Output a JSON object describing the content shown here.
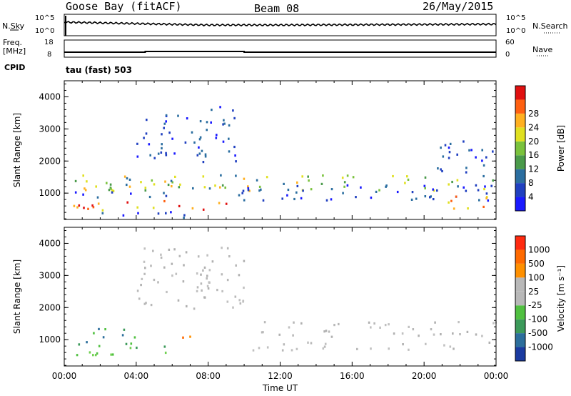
{
  "header": {
    "station": "Goose Bay (fitACF)",
    "beam": "Beam 08",
    "date": "26/May/2015"
  },
  "top_panels": {
    "nsky_label": "N.Sky",
    "nsky_ticks": [
      "10^5",
      "10^0"
    ],
    "nsearch_label": "N.Search",
    "nsearch_ticks": [
      "10^5",
      "10^0"
    ],
    "freq_label": "Freq.",
    "freq_unit": "[MHz]",
    "freq_ticks": [
      "18",
      "8"
    ],
    "nave_label": "Nave",
    "nave_ticks": [
      "60",
      "0"
    ],
    "cpid_label": "CPID",
    "cpid_value": "tau (fast) 503"
  },
  "chart_data": [
    {
      "type": "heatmap",
      "name": "power-panel",
      "ylabel": "Slant Range [km]",
      "ylim": [
        180,
        4500
      ],
      "yticks": [
        1000,
        2000,
        3000,
        4000
      ],
      "xlim": [
        "00:00",
        "24:00"
      ],
      "colorbar": {
        "label": "Power [dB]",
        "ticks": [
          "4",
          "8",
          "12",
          "16",
          "20",
          "24",
          "28"
        ],
        "colors": [
          "#1a1aff",
          "#2040c0",
          "#2b6ea0",
          "#4a9a4a",
          "#7ac23c",
          "#e0e020",
          "#ffb020",
          "#ff6010",
          "#e01010"
        ]
      },
      "regions": [
        {
          "t0": 0.5,
          "t1": 24,
          "r0": 1100,
          "r1": 1600,
          "level": "mid"
        },
        {
          "t0": 0.5,
          "t1": 10,
          "r0": 500,
          "r1": 800,
          "level": "high"
        },
        {
          "t0": 0.5,
          "t1": 6,
          "r0": 900,
          "r1": 1100,
          "level": "low"
        },
        {
          "t0": 4,
          "t1": 9.5,
          "r0": 2000,
          "r1": 3800,
          "level": "low"
        },
        {
          "t0": 9.5,
          "t1": 24,
          "r0": 800,
          "r1": 1300,
          "level": "low"
        },
        {
          "t0": 21,
          "t1": 24,
          "r0": 550,
          "r1": 950,
          "level": "high"
        },
        {
          "t0": 20.5,
          "t1": 24,
          "r0": 1600,
          "r1": 2700,
          "level": "low"
        },
        {
          "t0": 2,
          "t1": 7,
          "r0": 250,
          "r1": 450,
          "level": "low"
        }
      ]
    },
    {
      "type": "heatmap",
      "name": "velocity-panel",
      "ylabel": "Slant Range [km]",
      "xlabel": "Time UT",
      "ylim": [
        180,
        4500
      ],
      "yticks": [
        1000,
        2000,
        3000,
        4000
      ],
      "xticks": [
        "00:00",
        "04:00",
        "08:00",
        "12:00",
        "16:00",
        "20:00",
        "00:00"
      ],
      "colorbar": {
        "label": "Velocity [m s^-1]",
        "ticks": [
          "1000",
          "500",
          "100",
          "25",
          "-25",
          "-100",
          "-500",
          "-1000"
        ],
        "colors": [
          "#1a3aa0",
          "#2c6e9c",
          "#3c9a5a",
          "#50c040",
          "#b8b8b8",
          "#b8b8b8",
          "#ff9000",
          "#ff6a00",
          "#ff2a10"
        ]
      },
      "regions": [
        {
          "t0": 4,
          "t1": 10,
          "r0": 2000,
          "r1": 3900,
          "level": "grey"
        },
        {
          "t0": 9.5,
          "t1": 24,
          "r0": 1100,
          "r1": 1600,
          "level": "grey"
        },
        {
          "t0": 9.5,
          "t1": 24,
          "r0": 700,
          "r1": 950,
          "level": "grey"
        },
        {
          "t0": 0.5,
          "t1": 6,
          "r0": 550,
          "r1": 900,
          "level": "green"
        },
        {
          "t0": 0.5,
          "t1": 4,
          "r0": 900,
          "r1": 1400,
          "level": "darkgreen"
        },
        {
          "t0": 6,
          "t1": 7,
          "r0": 850,
          "r1": 1300,
          "level": "orange"
        }
      ]
    }
  ]
}
